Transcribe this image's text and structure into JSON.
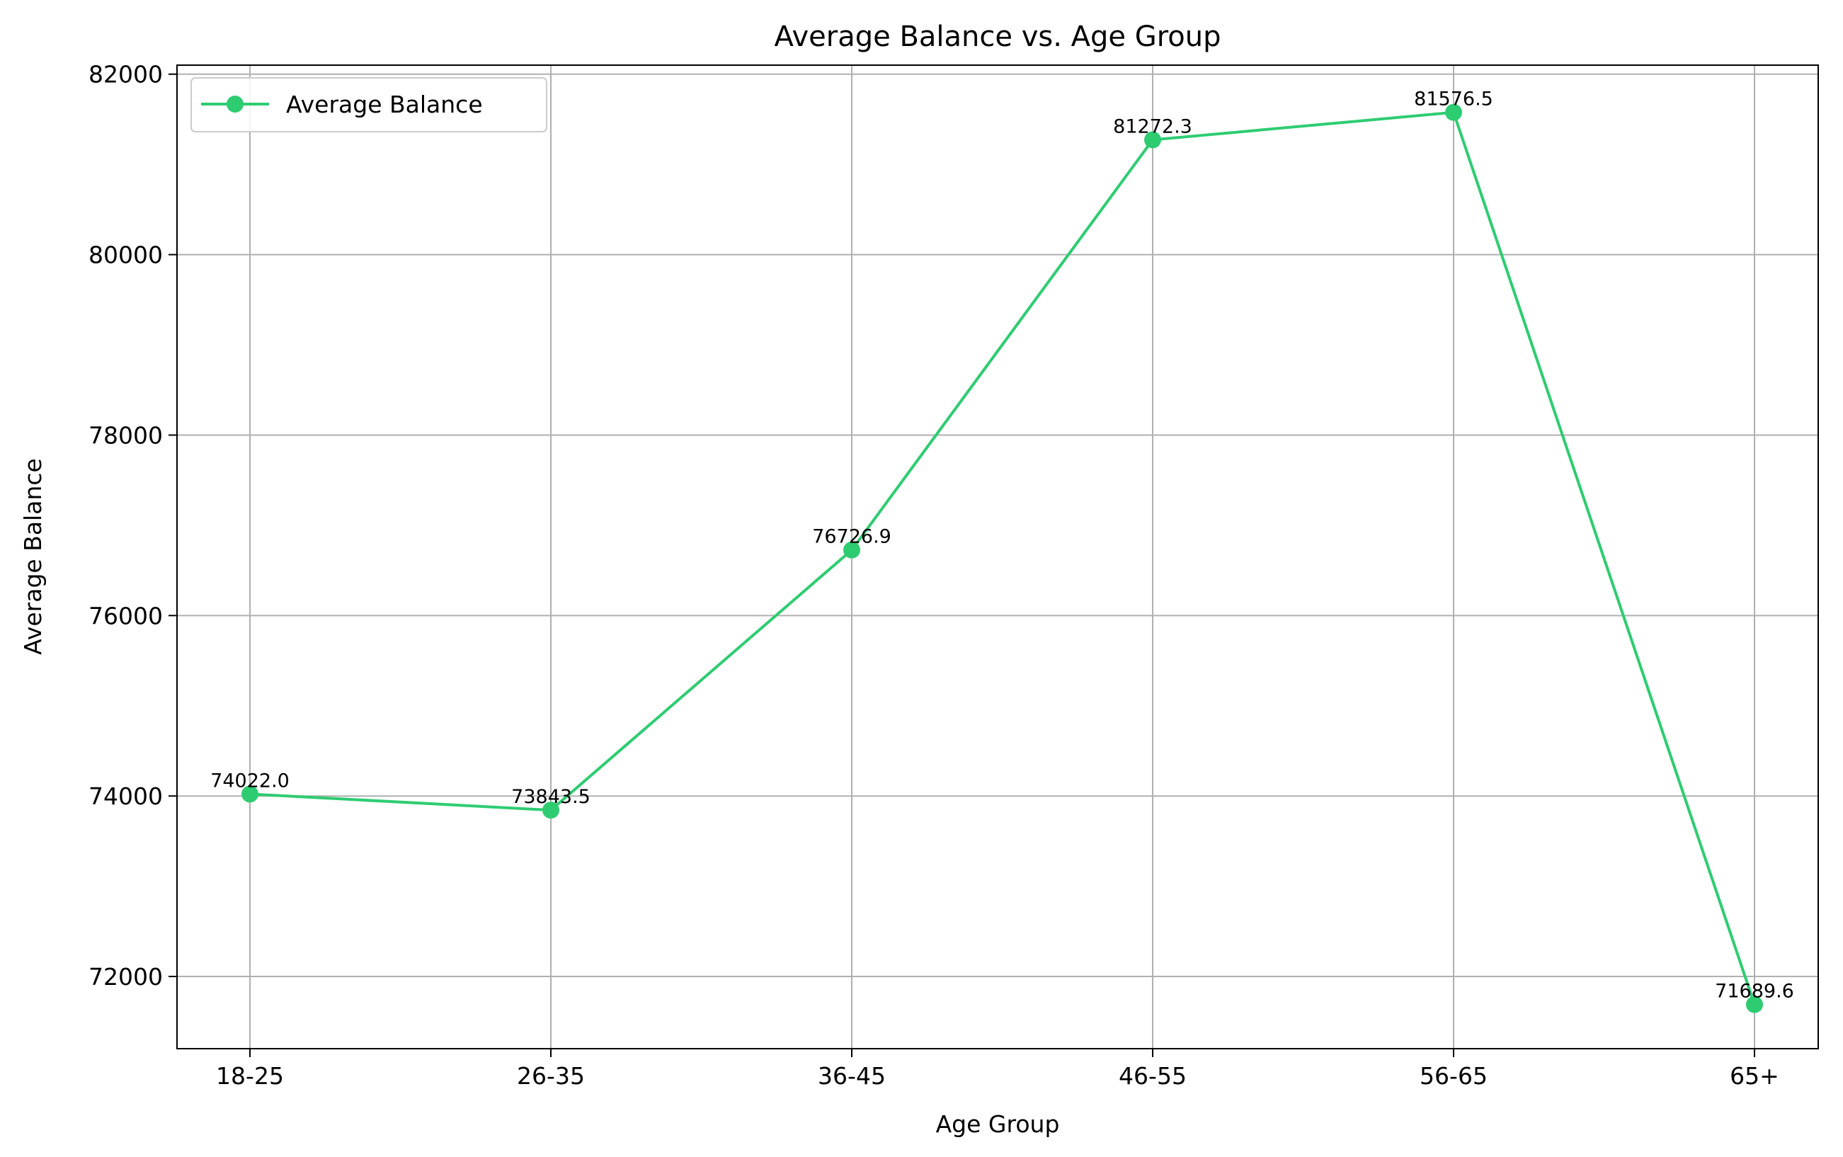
{
  "chart_data": {
    "type": "line",
    "title": "Average Balance vs. Age Group",
    "xlabel": "Age Group",
    "ylabel": "Average Balance",
    "categories": [
      "18-25",
      "26-35",
      "36-45",
      "46-55",
      "56-65",
      "65+"
    ],
    "series": [
      {
        "name": "Average Balance",
        "values": [
          74022.0,
          73843.5,
          76726.9,
          81272.3,
          81576.5,
          71689.6
        ],
        "data_labels": [
          "74022.0",
          "73843.5",
          "76726.9",
          "81272.3",
          "81576.5",
          "71689.6"
        ],
        "color": "#2ecc71"
      }
    ],
    "ylim": [
      71200,
      82100
    ],
    "yticks": [
      72000,
      74000,
      76000,
      78000,
      80000,
      82000
    ],
    "ytick_labels": [
      "72000",
      "74000",
      "76000",
      "78000",
      "80000",
      "82000"
    ],
    "grid": true,
    "legend_position": "top-left"
  }
}
